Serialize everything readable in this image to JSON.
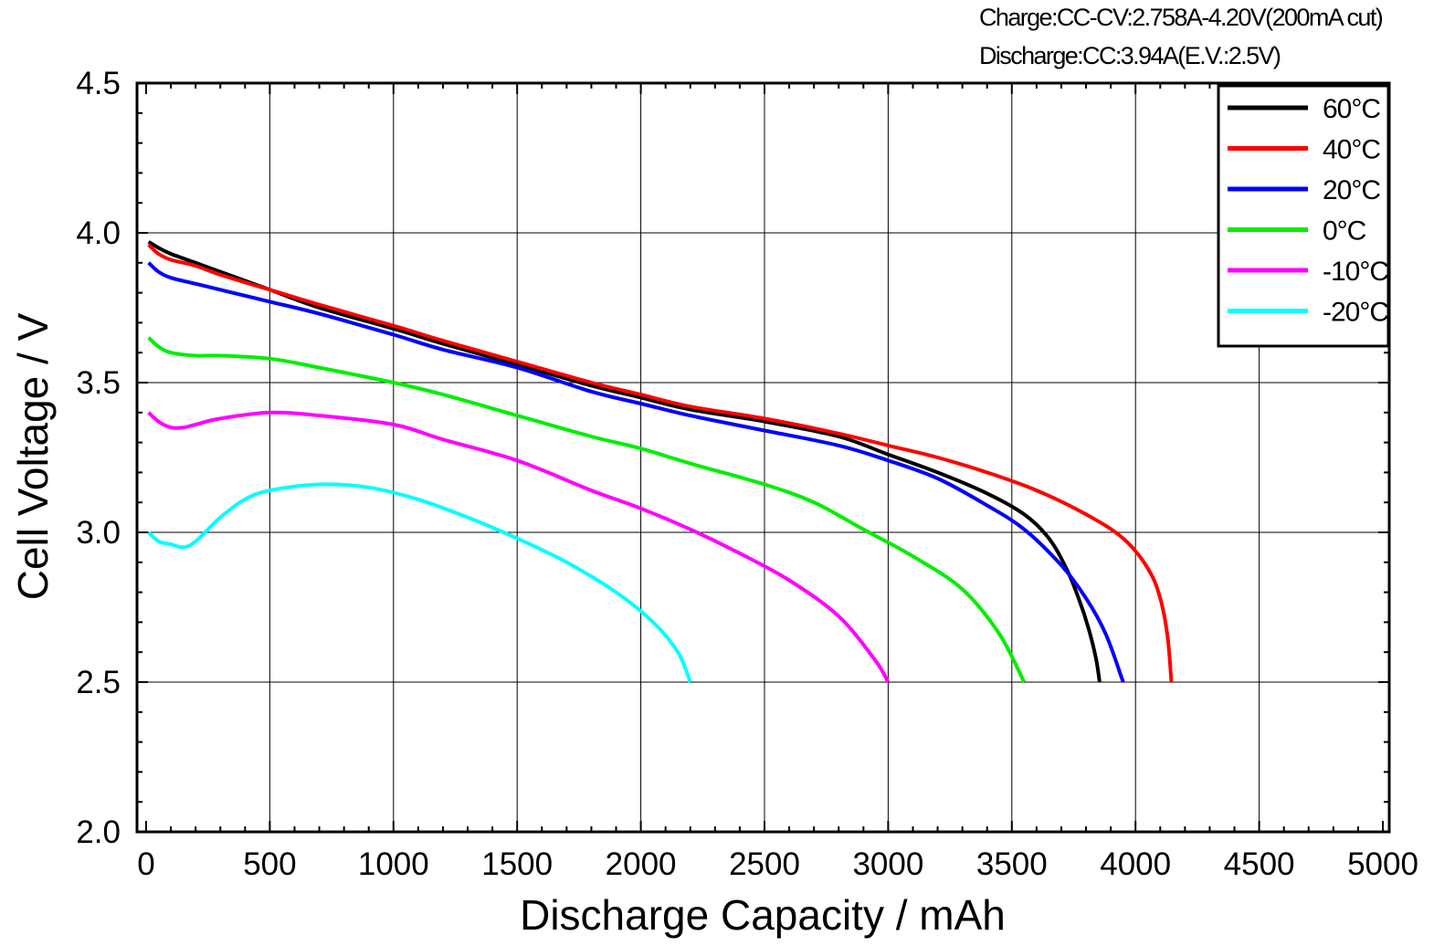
{
  "conditions": {
    "charge": "Charge:CC-CV:2.758A-4.20V(200mA  cut)",
    "discharge": "Discharge:CC:3.94A(E.V.:2.5V)"
  },
  "chart_data": {
    "type": "line",
    "title": "",
    "xlabel": "Discharge  Capacity  /  mAh",
    "ylabel": "Cell  Voltage  /  V",
    "xlim": [
      0,
      5000
    ],
    "ylim": [
      2.0,
      4.5
    ],
    "xticks": [
      0,
      500,
      1000,
      1500,
      2000,
      2500,
      3000,
      3500,
      4000,
      4500,
      5000
    ],
    "yticks": [
      2.0,
      2.5,
      3.0,
      3.5,
      4.0,
      4.5
    ],
    "xtick_labels": [
      "0",
      "500",
      "1000",
      "1500",
      "2000",
      "2500",
      "3000",
      "3500",
      "4000",
      "4500",
      "5000"
    ],
    "ytick_labels": [
      "2.0",
      "2.5",
      "3.0",
      "3.5",
      "4.0",
      "4.5"
    ],
    "grid": true,
    "legend_position": "top-right",
    "series": [
      {
        "name": "60°C",
        "color": "#000000",
        "points": [
          [
            10,
            3.97
          ],
          [
            50,
            3.95
          ],
          [
            100,
            3.93
          ],
          [
            200,
            3.9
          ],
          [
            300,
            3.87
          ],
          [
            500,
            3.81
          ],
          [
            700,
            3.75
          ],
          [
            1000,
            3.68
          ],
          [
            1200,
            3.63
          ],
          [
            1500,
            3.56
          ],
          [
            1800,
            3.49
          ],
          [
            2000,
            3.45
          ],
          [
            2200,
            3.41
          ],
          [
            2500,
            3.37
          ],
          [
            2800,
            3.32
          ],
          [
            3000,
            3.26
          ],
          [
            3200,
            3.2
          ],
          [
            3400,
            3.13
          ],
          [
            3550,
            3.06
          ],
          [
            3650,
            2.98
          ],
          [
            3720,
            2.88
          ],
          [
            3770,
            2.78
          ],
          [
            3810,
            2.68
          ],
          [
            3840,
            2.58
          ],
          [
            3855,
            2.5
          ]
        ]
      },
      {
        "name": "40°C",
        "color": "#ff0000",
        "points": [
          [
            10,
            3.96
          ],
          [
            50,
            3.93
          ],
          [
            100,
            3.91
          ],
          [
            200,
            3.89
          ],
          [
            300,
            3.86
          ],
          [
            500,
            3.81
          ],
          [
            700,
            3.76
          ],
          [
            1000,
            3.69
          ],
          [
            1200,
            3.64
          ],
          [
            1500,
            3.57
          ],
          [
            1800,
            3.5
          ],
          [
            2000,
            3.46
          ],
          [
            2200,
            3.42
          ],
          [
            2500,
            3.38
          ],
          [
            2800,
            3.33
          ],
          [
            3000,
            3.29
          ],
          [
            3200,
            3.25
          ],
          [
            3400,
            3.2
          ],
          [
            3600,
            3.14
          ],
          [
            3800,
            3.06
          ],
          [
            3950,
            2.98
          ],
          [
            4050,
            2.88
          ],
          [
            4100,
            2.78
          ],
          [
            4130,
            2.65
          ],
          [
            4145,
            2.5
          ]
        ]
      },
      {
        "name": "20°C",
        "color": "#0000ff",
        "points": [
          [
            10,
            3.9
          ],
          [
            50,
            3.87
          ],
          [
            100,
            3.85
          ],
          [
            200,
            3.83
          ],
          [
            300,
            3.81
          ],
          [
            500,
            3.77
          ],
          [
            700,
            3.73
          ],
          [
            1000,
            3.66
          ],
          [
            1200,
            3.61
          ],
          [
            1500,
            3.55
          ],
          [
            1800,
            3.47
          ],
          [
            2000,
            3.43
          ],
          [
            2200,
            3.39
          ],
          [
            2500,
            3.34
          ],
          [
            2800,
            3.29
          ],
          [
            3000,
            3.24
          ],
          [
            3200,
            3.18
          ],
          [
            3400,
            3.09
          ],
          [
            3550,
            3.01
          ],
          [
            3700,
            2.89
          ],
          [
            3800,
            2.78
          ],
          [
            3880,
            2.66
          ],
          [
            3950,
            2.5
          ]
        ]
      },
      {
        "name": "0°C",
        "color": "#00ee00",
        "points": [
          [
            10,
            3.65
          ],
          [
            50,
            3.62
          ],
          [
            100,
            3.6
          ],
          [
            200,
            3.59
          ],
          [
            300,
            3.59
          ],
          [
            500,
            3.58
          ],
          [
            700,
            3.55
          ],
          [
            1000,
            3.5
          ],
          [
            1200,
            3.46
          ],
          [
            1500,
            3.39
          ],
          [
            1800,
            3.32
          ],
          [
            2000,
            3.28
          ],
          [
            2200,
            3.23
          ],
          [
            2500,
            3.16
          ],
          [
            2700,
            3.1
          ],
          [
            2900,
            3.01
          ],
          [
            3100,
            2.92
          ],
          [
            3300,
            2.81
          ],
          [
            3450,
            2.66
          ],
          [
            3550,
            2.5
          ]
        ]
      },
      {
        "name": "-10°C",
        "color": "#ff00ff",
        "points": [
          [
            10,
            3.4
          ],
          [
            50,
            3.37
          ],
          [
            100,
            3.35
          ],
          [
            150,
            3.35
          ],
          [
            200,
            3.36
          ],
          [
            300,
            3.38
          ],
          [
            500,
            3.4
          ],
          [
            700,
            3.39
          ],
          [
            1000,
            3.36
          ],
          [
            1200,
            3.31
          ],
          [
            1500,
            3.24
          ],
          [
            1800,
            3.14
          ],
          [
            2000,
            3.08
          ],
          [
            2200,
            3.01
          ],
          [
            2400,
            2.93
          ],
          [
            2600,
            2.84
          ],
          [
            2800,
            2.72
          ],
          [
            2950,
            2.57
          ],
          [
            3000,
            2.5
          ]
        ]
      },
      {
        "name": "-20°C",
        "color": "#00ffff",
        "points": [
          [
            10,
            3.0
          ],
          [
            50,
            2.97
          ],
          [
            100,
            2.96
          ],
          [
            150,
            2.95
          ],
          [
            200,
            2.97
          ],
          [
            300,
            3.05
          ],
          [
            400,
            3.11
          ],
          [
            500,
            3.14
          ],
          [
            700,
            3.16
          ],
          [
            900,
            3.15
          ],
          [
            1100,
            3.11
          ],
          [
            1300,
            3.05
          ],
          [
            1500,
            2.98
          ],
          [
            1700,
            2.9
          ],
          [
            1900,
            2.8
          ],
          [
            2050,
            2.7
          ],
          [
            2150,
            2.6
          ],
          [
            2200,
            2.5
          ]
        ]
      }
    ]
  }
}
